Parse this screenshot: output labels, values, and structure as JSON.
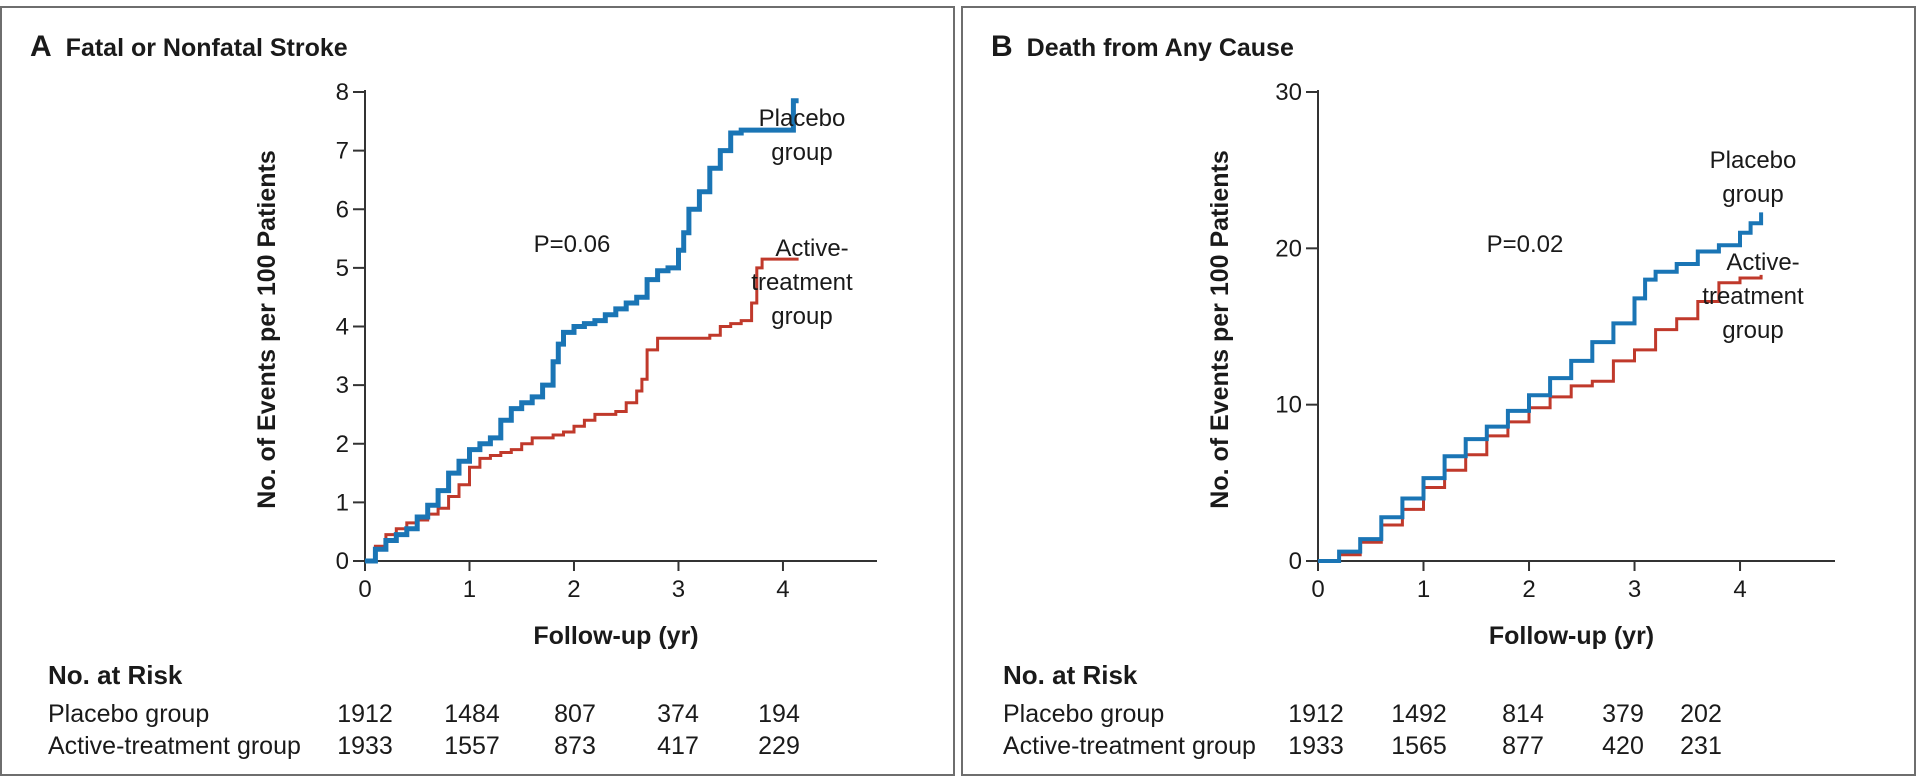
{
  "chart_data": [
    {
      "type": "line",
      "panel_letter": "A",
      "title": "Fatal or Nonfatal Stroke",
      "xlabel": "Follow-up (yr)",
      "ylabel": "No. of Events per 100 Patients",
      "xlim": [
        0,
        4.9
      ],
      "ylim": [
        0,
        8
      ],
      "xticks": [
        0,
        1,
        2,
        3,
        4
      ],
      "yticks": [
        0,
        1,
        2,
        3,
        4,
        5,
        6,
        7,
        8
      ],
      "p_value": "P=0.06",
      "series": [
        {
          "name": "Placebo group",
          "label_lines": [
            "Placebo",
            "group"
          ],
          "color": "#1a75b5",
          "x": [
            0,
            0.1,
            0.2,
            0.3,
            0.4,
            0.5,
            0.6,
            0.7,
            0.8,
            0.9,
            1.0,
            1.1,
            1.2,
            1.3,
            1.4,
            1.5,
            1.6,
            1.7,
            1.8,
            1.85,
            1.9,
            2.0,
            2.1,
            2.2,
            2.3,
            2.4,
            2.5,
            2.6,
            2.7,
            2.8,
            2.9,
            3.0,
            3.05,
            3.1,
            3.2,
            3.3,
            3.4,
            3.5,
            3.6,
            3.7,
            3.8,
            3.9,
            4.0,
            4.1,
            4.15
          ],
          "y": [
            0,
            0.2,
            0.35,
            0.45,
            0.55,
            0.75,
            0.95,
            1.2,
            1.5,
            1.7,
            1.9,
            2.0,
            2.1,
            2.4,
            2.6,
            2.7,
            2.8,
            3.0,
            3.4,
            3.7,
            3.9,
            4.0,
            4.05,
            4.1,
            4.2,
            4.3,
            4.4,
            4.5,
            4.8,
            4.95,
            5.0,
            5.3,
            5.6,
            6.0,
            6.3,
            6.7,
            7.0,
            7.3,
            7.35,
            7.35,
            7.35,
            7.35,
            7.35,
            7.85,
            7.85
          ]
        },
        {
          "name": "Active-treatment group",
          "label_lines": [
            "Active-",
            "treatment",
            "group"
          ],
          "color": "#c0392b",
          "x": [
            0,
            0.1,
            0.2,
            0.3,
            0.4,
            0.5,
            0.6,
            0.7,
            0.8,
            0.9,
            1.0,
            1.1,
            1.2,
            1.3,
            1.4,
            1.5,
            1.6,
            1.7,
            1.8,
            1.9,
            2.0,
            2.1,
            2.2,
            2.3,
            2.4,
            2.5,
            2.6,
            2.65,
            2.7,
            2.8,
            2.9,
            3.0,
            3.1,
            3.2,
            3.3,
            3.4,
            3.5,
            3.6,
            3.7,
            3.75,
            3.8,
            3.9,
            4.0,
            4.15
          ],
          "y": [
            0,
            0.25,
            0.45,
            0.55,
            0.65,
            0.7,
            0.8,
            0.9,
            1.1,
            1.3,
            1.6,
            1.75,
            1.8,
            1.85,
            1.9,
            2.0,
            2.1,
            2.1,
            2.15,
            2.2,
            2.3,
            2.4,
            2.5,
            2.5,
            2.55,
            2.7,
            2.9,
            3.1,
            3.6,
            3.8,
            3.8,
            3.8,
            3.8,
            3.8,
            3.85,
            4.0,
            4.05,
            4.1,
            4.4,
            5.0,
            5.15,
            5.15,
            5.15,
            5.15
          ]
        }
      ],
      "risk_table": {
        "title": "No. at Risk",
        "rows": [
          {
            "label": "Placebo group",
            "values": [
              "1912",
              "1484",
              "807",
              "374",
              "194"
            ]
          },
          {
            "label": "Active-treatment group",
            "values": [
              "1933",
              "1557",
              "873",
              "417",
              "229"
            ]
          }
        ]
      }
    },
    {
      "type": "line",
      "panel_letter": "B",
      "title": "Death from Any Cause",
      "xlabel": "Follow-up (yr)",
      "ylabel": "No. of Events per 100 Patients",
      "xlim": [
        0,
        4.9
      ],
      "ylim": [
        0,
        30
      ],
      "xticks": [
        0,
        1,
        2,
        3,
        4
      ],
      "yticks": [
        0,
        10,
        20,
        30
      ],
      "p_value": "P=0.02",
      "series": [
        {
          "name": "Placebo group",
          "label_lines": [
            "Placebo",
            "group"
          ],
          "color": "#1a75b5",
          "x": [
            0,
            0.2,
            0.4,
            0.6,
            0.8,
            1.0,
            1.2,
            1.4,
            1.6,
            1.8,
            2.0,
            2.2,
            2.4,
            2.6,
            2.8,
            3.0,
            3.1,
            3.2,
            3.4,
            3.6,
            3.8,
            4.0,
            4.1,
            4.2
          ],
          "y": [
            0,
            0.6,
            1.4,
            2.8,
            4.0,
            5.3,
            6.7,
            7.8,
            8.6,
            9.6,
            10.6,
            11.7,
            12.8,
            14.0,
            15.2,
            16.8,
            18.0,
            18.5,
            19.0,
            19.8,
            20.2,
            21.0,
            21.6,
            22.3
          ]
        },
        {
          "name": "Active-treatment group",
          "label_lines": [
            "Active-",
            "treatment",
            "group"
          ],
          "color": "#c0392b",
          "x": [
            0,
            0.2,
            0.4,
            0.6,
            0.8,
            1.0,
            1.2,
            1.4,
            1.6,
            1.8,
            2.0,
            2.2,
            2.4,
            2.6,
            2.8,
            3.0,
            3.2,
            3.4,
            3.6,
            3.8,
            4.0,
            4.2
          ],
          "y": [
            0,
            0.4,
            1.2,
            2.3,
            3.3,
            4.7,
            5.8,
            6.8,
            8.0,
            8.9,
            9.8,
            10.5,
            11.2,
            11.5,
            12.8,
            13.5,
            14.8,
            15.5,
            16.6,
            17.8,
            18.1,
            18.3
          ]
        }
      ],
      "risk_table": {
        "title": "No. at Risk",
        "rows": [
          {
            "label": "Placebo group",
            "values": [
              "1912",
              "1492",
              "814",
              "379",
              "202"
            ]
          },
          {
            "label": "Active-treatment group",
            "values": [
              "1933",
              "1565",
              "877",
              "420",
              "231"
            ]
          }
        ]
      }
    }
  ]
}
